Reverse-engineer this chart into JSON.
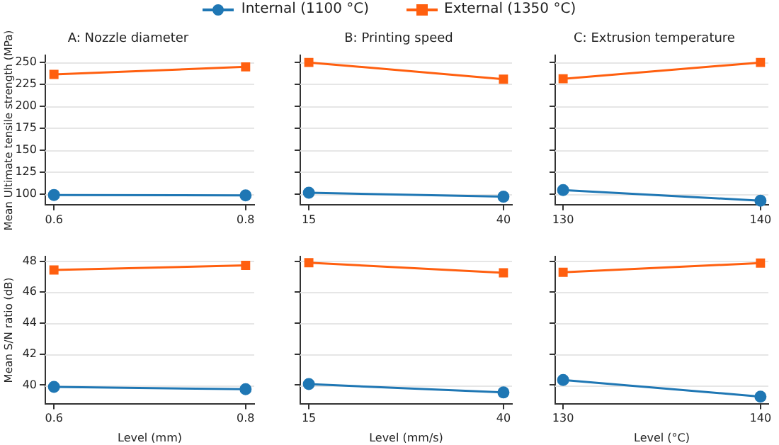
{
  "chart_data": [
    {
      "type": "line",
      "title": "A: Nozzle diameter",
      "ylabel": "Mean Ultimate tensile strength (MPa)",
      "x": [
        0.6,
        0.8
      ],
      "xlim": [
        0.591,
        0.809
      ],
      "xticks": [
        0.6,
        0.8
      ],
      "legend": "top",
      "grid": "y",
      "ylim": [
        88,
        258
      ],
      "yticks": [
        100,
        125,
        150,
        175,
        200,
        225,
        250
      ],
      "series": [
        {
          "name": "Internal (1100 °C)",
          "color": "#1f77b4",
          "marker": "circle",
          "values": [
            99,
            98.5
          ]
        },
        {
          "name": "External (1350 °C)",
          "color": "#ff5f0f",
          "marker": "square",
          "values": [
            236,
            244.5
          ]
        }
      ]
    },
    {
      "type": "line",
      "title": "B: Printing speed",
      "x": [
        15,
        40
      ],
      "xlim": [
        13.9,
        41.1
      ],
      "xticks": [
        15,
        40
      ],
      "grid": "y",
      "tick_labels": "x",
      "ylim": [
        88,
        258
      ],
      "yticks": [
        100,
        125,
        150,
        175,
        200,
        225,
        250
      ],
      "series": [
        {
          "color": "#1f77b4",
          "marker": "circle",
          "values": [
            101.5,
            97
          ]
        },
        {
          "color": "#ff5f0f",
          "marker": "square",
          "values": [
            249.5,
            230.5
          ]
        }
      ]
    },
    {
      "type": "line",
      "title": "C: Extrusion temperature",
      "x": [
        130,
        140
      ],
      "xlim": [
        129.6,
        140.4
      ],
      "xticks": [
        130,
        140
      ],
      "grid": "y",
      "tick_labels": "x",
      "ylim": [
        88,
        258
      ],
      "yticks": [
        100,
        125,
        150,
        175,
        200,
        225,
        250
      ],
      "series": [
        {
          "color": "#1f77b4",
          "marker": "circle",
          "values": [
            104.5,
            92.5
          ]
        },
        {
          "color": "#ff5f0f",
          "marker": "square",
          "values": [
            231,
            249.5
          ]
        }
      ]
    },
    {
      "type": "line",
      "xlabel": "Level (mm)",
      "ylabel": "Mean S/N ratio (dB)",
      "x": [
        0.6,
        0.8
      ],
      "xlim": [
        0.591,
        0.809
      ],
      "xticks": [
        0.6,
        0.8
      ],
      "grid": "y",
      "ylim": [
        38.8,
        48.3
      ],
      "yticks": [
        40,
        42,
        44,
        46,
        48
      ],
      "series": [
        {
          "color": "#1f77b4",
          "marker": "circle",
          "values": [
            39.88,
            39.73
          ]
        },
        {
          "color": "#ff5f0f",
          "marker": "square",
          "values": [
            47.43,
            47.73
          ]
        }
      ]
    },
    {
      "type": "line",
      "xlabel": "Level (mm/s)",
      "x": [
        15,
        40
      ],
      "xlim": [
        13.9,
        41.1
      ],
      "xticks": [
        15,
        40
      ],
      "grid": "y",
      "tick_labels": "x",
      "ylim": [
        38.8,
        48.3
      ],
      "yticks": [
        40,
        42,
        44,
        46,
        48
      ],
      "series": [
        {
          "color": "#1f77b4",
          "marker": "circle",
          "values": [
            40.06,
            39.52
          ]
        },
        {
          "color": "#ff5f0f",
          "marker": "square",
          "values": [
            47.9,
            47.25
          ]
        }
      ]
    },
    {
      "type": "line",
      "xlabel": "Level (°C)",
      "x": [
        130,
        140
      ],
      "xlim": [
        129.6,
        140.4
      ],
      "xticks": [
        130,
        140
      ],
      "grid": "y",
      "tick_labels": "x",
      "ylim": [
        38.8,
        48.3
      ],
      "yticks": [
        40,
        42,
        44,
        46,
        48
      ],
      "series": [
        {
          "color": "#1f77b4",
          "marker": "circle",
          "values": [
            40.33,
            39.25
          ]
        },
        {
          "color": "#ff5f0f",
          "marker": "square",
          "values": [
            47.28,
            47.88
          ]
        }
      ]
    }
  ]
}
